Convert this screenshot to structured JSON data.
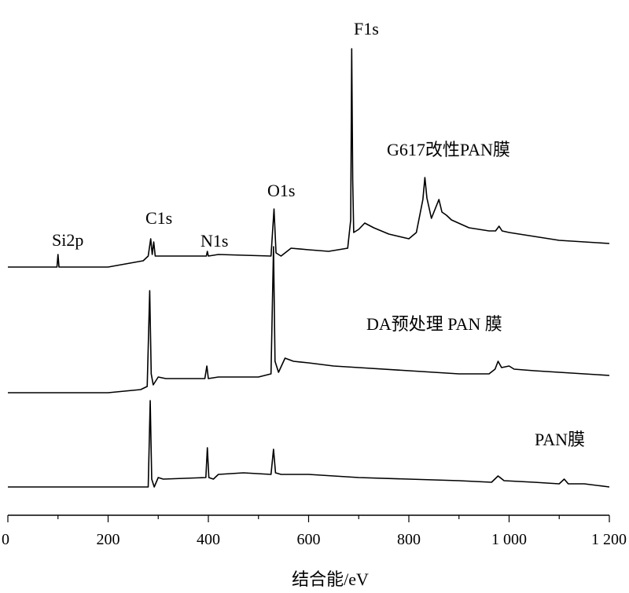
{
  "chart_data": {
    "type": "line",
    "title": "",
    "xlabel": "结合能/eV",
    "ylabel": "",
    "xlim": [
      0,
      1200
    ],
    "x_ticks": [
      0,
      200,
      400,
      600,
      800,
      1000,
      1200
    ],
    "x_tick_labels": [
      "0",
      "200",
      "400",
      "600",
      "800",
      "1 000",
      "1 200"
    ],
    "y_axis": "none",
    "grid": false,
    "series": [
      {
        "name": "G617改性PAN膜",
        "points": [
          [
            0,
            0.0
          ],
          [
            60,
            0.0
          ],
          [
            98,
            0.0
          ],
          [
            100,
            0.08
          ],
          [
            102,
            0.0
          ],
          [
            200,
            0.0
          ],
          [
            270,
            0.04
          ],
          [
            280,
            0.07
          ],
          [
            285,
            0.18
          ],
          [
            288,
            0.08
          ],
          [
            291,
            0.16
          ],
          [
            294,
            0.07
          ],
          [
            310,
            0.07
          ],
          [
            396,
            0.07
          ],
          [
            398,
            0.1
          ],
          [
            400,
            0.07
          ],
          [
            420,
            0.08
          ],
          [
            525,
            0.07
          ],
          [
            531,
            0.37
          ],
          [
            535,
            0.09
          ],
          [
            545,
            0.07
          ],
          [
            565,
            0.12
          ],
          [
            600,
            0.11
          ],
          [
            640,
            0.1
          ],
          [
            678,
            0.12
          ],
          [
            684,
            0.3
          ],
          [
            686,
            1.39
          ],
          [
            688,
            0.55
          ],
          [
            690,
            0.22
          ],
          [
            700,
            0.24
          ],
          [
            712,
            0.28
          ],
          [
            730,
            0.25
          ],
          [
            760,
            0.21
          ],
          [
            800,
            0.18
          ],
          [
            815,
            0.22
          ],
          [
            828,
            0.43
          ],
          [
            832,
            0.57
          ],
          [
            836,
            0.44
          ],
          [
            845,
            0.31
          ],
          [
            855,
            0.39
          ],
          [
            860,
            0.43
          ],
          [
            866,
            0.35
          ],
          [
            875,
            0.33
          ],
          [
            885,
            0.3
          ],
          [
            920,
            0.25
          ],
          [
            960,
            0.23
          ],
          [
            973,
            0.23
          ],
          [
            980,
            0.26
          ],
          [
            986,
            0.23
          ],
          [
            1000,
            0.22
          ],
          [
            1060,
            0.19
          ],
          [
            1100,
            0.17
          ],
          [
            1150,
            0.16
          ],
          [
            1200,
            0.15
          ]
        ]
      },
      {
        "name": "DA预处理 PAN 膜",
        "points": [
          [
            0,
            0.0
          ],
          [
            100,
            0.0
          ],
          [
            200,
            0.0
          ],
          [
            265,
            0.02
          ],
          [
            278,
            0.04
          ],
          [
            283,
            0.65
          ],
          [
            286,
            0.12
          ],
          [
            290,
            0.05
          ],
          [
            300,
            0.1
          ],
          [
            315,
            0.09
          ],
          [
            393,
            0.09
          ],
          [
            397,
            0.17
          ],
          [
            400,
            0.09
          ],
          [
            420,
            0.1
          ],
          [
            500,
            0.1
          ],
          [
            525,
            0.12
          ],
          [
            530,
            0.93
          ],
          [
            533,
            0.2
          ],
          [
            540,
            0.13
          ],
          [
            553,
            0.22
          ],
          [
            570,
            0.2
          ],
          [
            600,
            0.19
          ],
          [
            650,
            0.17
          ],
          [
            700,
            0.16
          ],
          [
            800,
            0.14
          ],
          [
            900,
            0.12
          ],
          [
            960,
            0.12
          ],
          [
            972,
            0.15
          ],
          [
            978,
            0.2
          ],
          [
            985,
            0.16
          ],
          [
            1000,
            0.17
          ],
          [
            1010,
            0.15
          ],
          [
            1050,
            0.14
          ],
          [
            1100,
            0.13
          ],
          [
            1150,
            0.12
          ],
          [
            1200,
            0.11
          ]
        ]
      },
      {
        "name": "PAN膜",
        "points": [
          [
            0,
            0.0
          ],
          [
            100,
            0.0
          ],
          [
            200,
            0.0
          ],
          [
            270,
            0.0
          ],
          [
            280,
            0.0
          ],
          [
            284,
            0.55
          ],
          [
            287,
            0.05
          ],
          [
            292,
            0.0
          ],
          [
            300,
            0.06
          ],
          [
            310,
            0.05
          ],
          [
            395,
            0.06
          ],
          [
            398,
            0.25
          ],
          [
            401,
            0.06
          ],
          [
            410,
            0.05
          ],
          [
            420,
            0.08
          ],
          [
            470,
            0.09
          ],
          [
            525,
            0.08
          ],
          [
            530,
            0.24
          ],
          [
            534,
            0.09
          ],
          [
            545,
            0.08
          ],
          [
            600,
            0.08
          ],
          [
            700,
            0.06
          ],
          [
            800,
            0.05
          ],
          [
            900,
            0.04
          ],
          [
            965,
            0.03
          ],
          [
            978,
            0.07
          ],
          [
            990,
            0.04
          ],
          [
            1050,
            0.03
          ],
          [
            1100,
            0.02
          ],
          [
            1110,
            0.05
          ],
          [
            1118,
            0.02
          ],
          [
            1150,
            0.02
          ],
          [
            1200,
            0.0
          ]
        ]
      }
    ],
    "series_labels": [
      {
        "text": "G617改性PAN膜"
      },
      {
        "text": "DA预处理 PAN 膜"
      },
      {
        "text": "PAN膜"
      }
    ],
    "peak_annotations": [
      {
        "text": "Si2p",
        "x": 100
      },
      {
        "text": "C1s",
        "x": 285
      },
      {
        "text": "N1s",
        "x": 398
      },
      {
        "text": "O1s",
        "x": 531
      },
      {
        "text": "F1s",
        "x": 686
      }
    ]
  }
}
